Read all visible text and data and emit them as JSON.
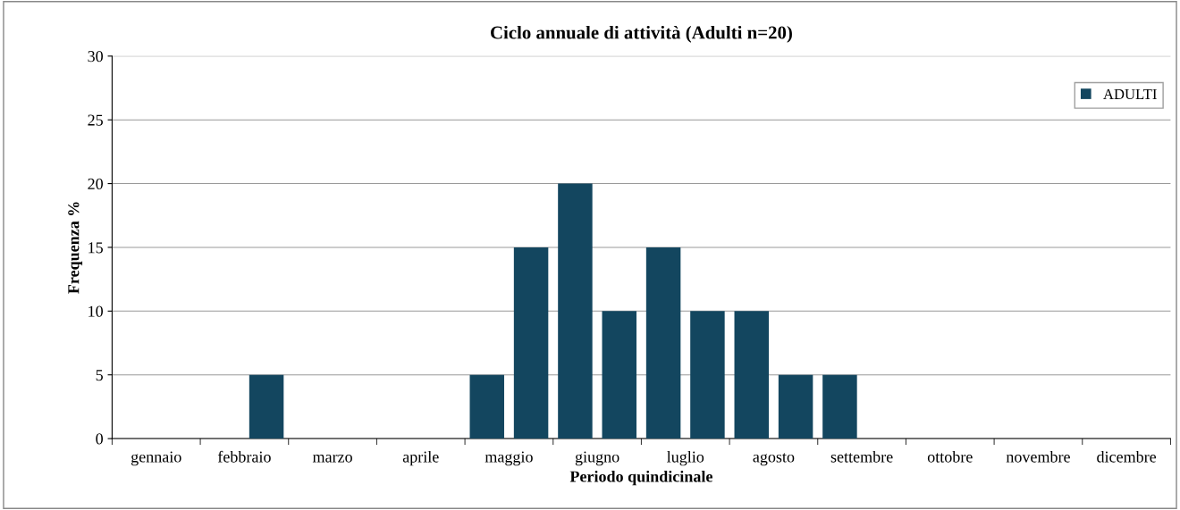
{
  "chart_data": {
    "type": "bar",
    "title": "Ciclo annuale di attività (Adulti n=20)",
    "xlabel": "Periodo quindicinale",
    "ylabel": "Frequenza %",
    "categories": [
      "gennaio",
      null,
      "febbraio",
      null,
      "marzo",
      null,
      "aprile",
      null,
      "maggio",
      null,
      "giugno",
      null,
      "luglio",
      null,
      "agosto",
      null,
      "settembre",
      null,
      "ottobre",
      null,
      "novembre",
      null,
      "dicembre",
      null
    ],
    "series": [
      {
        "name": "ADULTI",
        "color": "#13465f",
        "values": [
          0,
          0,
          0,
          5,
          0,
          0,
          0,
          0,
          5,
          15,
          20,
          10,
          15,
          10,
          10,
          5,
          5,
          0,
          0,
          0,
          0,
          0,
          0,
          0
        ]
      }
    ],
    "ylim": [
      0,
      30
    ],
    "yticks": [
      0,
      5,
      10,
      15,
      20,
      25,
      30
    ],
    "grid": "y",
    "legend": "top right"
  }
}
